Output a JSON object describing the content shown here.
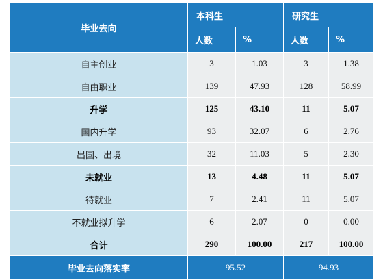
{
  "header": {
    "destination": "毕业去向",
    "undergraduate": "本科生",
    "graduate": "研究生",
    "count": "人数",
    "percent": "%"
  },
  "rows": [
    {
      "label": "自主创业",
      "ug_count": "3",
      "ug_pct": "1.03",
      "g_count": "3",
      "g_pct": "1.38",
      "bold": false
    },
    {
      "label": "自由职业",
      "ug_count": "139",
      "ug_pct": "47.93",
      "g_count": "128",
      "g_pct": "58.99",
      "bold": false
    },
    {
      "label": "升学",
      "ug_count": "125",
      "ug_pct": "43.10",
      "g_count": "11",
      "g_pct": "5.07",
      "bold": true
    },
    {
      "label": "国内升学",
      "ug_count": "93",
      "ug_pct": "32.07",
      "g_count": "6",
      "g_pct": "2.76",
      "bold": false
    },
    {
      "label": "出国、出境",
      "ug_count": "32",
      "ug_pct": "11.03",
      "g_count": "5",
      "g_pct": "2.30",
      "bold": false
    },
    {
      "label": "未就业",
      "ug_count": "13",
      "ug_pct": "4.48",
      "g_count": "11",
      "g_pct": "5.07",
      "bold": true
    },
    {
      "label": "待就业",
      "ug_count": "7",
      "ug_pct": "2.41",
      "g_count": "11",
      "g_pct": "5.07",
      "bold": false
    },
    {
      "label": "不就业拟升学",
      "ug_count": "6",
      "ug_pct": "2.07",
      "g_count": "0",
      "g_pct": "0.00",
      "bold": false
    },
    {
      "label": "合计",
      "ug_count": "290",
      "ug_pct": "100.00",
      "g_count": "217",
      "g_pct": "100.00",
      "bold": true
    }
  ],
  "footer": {
    "label": "毕业去向落实率",
    "ug_rate": "95.52",
    "g_rate": "94.93"
  },
  "colors": {
    "header_blue": "#1f7cc0",
    "label_cell": "#c8e2ee",
    "value_cell": "#eceeef"
  }
}
